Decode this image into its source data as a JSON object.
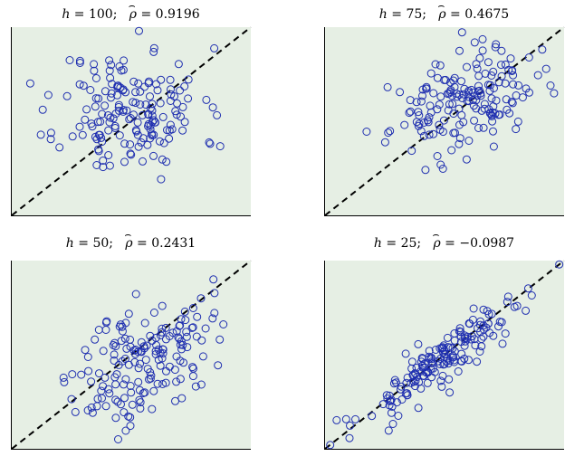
{
  "chart_data": [
    {
      "type": "scatter",
      "title": {
        "h_label": "h",
        "h_value": "100",
        "rho_label": "ρ",
        "rho_value": "0.9196"
      },
      "xlim": [
        0,
        1
      ],
      "ylim": [
        0,
        1
      ],
      "reference_line": "y = x (dashed)",
      "seed": 11,
      "cluster": {
        "cx": 0.5,
        "cy": 0.55,
        "sx": 0.15,
        "sy": 0.17,
        "corr": 0.0,
        "n": 170
      }
    },
    {
      "type": "scatter",
      "title": {
        "h_label": "h",
        "h_value": "75",
        "rho_label": "ρ",
        "rho_value": "0.4675"
      },
      "xlim": [
        0,
        1
      ],
      "ylim": [
        0,
        1
      ],
      "reference_line": "y = x (dashed)",
      "seed": 23,
      "cluster": {
        "cx": 0.58,
        "cy": 0.6,
        "sx": 0.15,
        "sy": 0.13,
        "corr": 0.35,
        "n": 170
      }
    },
    {
      "type": "scatter",
      "title": {
        "h_label": "h",
        "h_value": "50",
        "rho_label": "ρ",
        "rho_value": "0.2431"
      },
      "xlim": [
        0,
        1
      ],
      "ylim": [
        0,
        1
      ],
      "reference_line": "y = x (dashed)",
      "seed": 37,
      "cluster": {
        "cx": 0.55,
        "cy": 0.47,
        "sx": 0.14,
        "sy": 0.17,
        "corr": 0.45,
        "n": 170
      }
    },
    {
      "type": "scatter",
      "title": {
        "h_label": "h",
        "h_value": "25",
        "rho_label": "ρ",
        "rho_value": "−0.0987"
      },
      "xlim": [
        0,
        1
      ],
      "ylim": [
        0,
        1
      ],
      "reference_line": "y = x (dashed)",
      "seed": 53,
      "cluster": {
        "cx": 0.5,
        "cy": 0.48,
        "sx": 0.18,
        "sy": 0.18,
        "corr": 0.92,
        "n": 170
      }
    }
  ],
  "colors": {
    "marker": "#1f2fb0",
    "background": "#e6efe4",
    "reference_line": "#000000"
  }
}
